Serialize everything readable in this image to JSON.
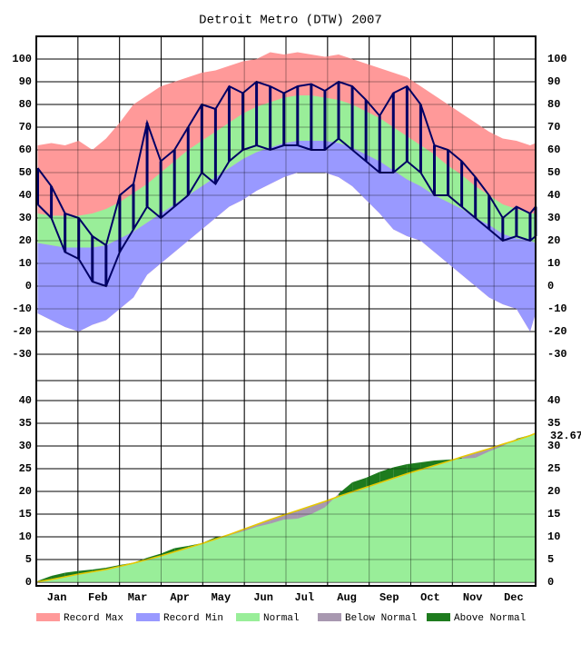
{
  "chart_data": [
    {
      "type": "band",
      "title": "Detroit Metro (DTW) 2007",
      "x": [
        1,
        11,
        21,
        31,
        41,
        51,
        61,
        71,
        81,
        91,
        101,
        111,
        121,
        131,
        141,
        151,
        161,
        171,
        181,
        191,
        201,
        211,
        221,
        231,
        241,
        251,
        261,
        271,
        281,
        291,
        301,
        311,
        321,
        331,
        341,
        351,
        361,
        365
      ],
      "xlim": [
        0,
        365
      ],
      "xticks": [
        {
          "value": 15,
          "label": "Jan"
        },
        {
          "value": 45,
          "label": "Feb"
        },
        {
          "value": 74,
          "label": "Mar"
        },
        {
          "value": 105,
          "label": "Apr"
        },
        {
          "value": 135,
          "label": "May"
        },
        {
          "value": 166,
          "label": "Jun"
        },
        {
          "value": 196,
          "label": "Jul"
        },
        {
          "value": 227,
          "label": "Aug"
        },
        {
          "value": 258,
          "label": "Sep"
        },
        {
          "value": 288,
          "label": "Oct"
        },
        {
          "value": 319,
          "label": "Nov"
        },
        {
          "value": 349,
          "label": "Dec"
        }
      ],
      "ylim": [
        -40,
        110
      ],
      "yticks": [
        -30,
        -20,
        -10,
        0,
        10,
        20,
        30,
        40,
        50,
        60,
        70,
        80,
        90,
        100
      ],
      "grid": true,
      "series": [
        {
          "name": "Record Max",
          "color": "#ff9999",
          "values": [
            62,
            63,
            62,
            64,
            60,
            65,
            72,
            80,
            84,
            88,
            90,
            92,
            94,
            95,
            97,
            99,
            100,
            103,
            102,
            103,
            102,
            101,
            102,
            100,
            98,
            96,
            94,
            92,
            88,
            84,
            80,
            76,
            72,
            68,
            65,
            64,
            62,
            63
          ]
        },
        {
          "name": "Record Min",
          "color": "#9999ff",
          "values": [
            -12,
            -15,
            -18,
            -20,
            -17,
            -15,
            -10,
            -5,
            5,
            10,
            15,
            20,
            25,
            30,
            35,
            38,
            42,
            45,
            48,
            50,
            50,
            50,
            48,
            44,
            38,
            32,
            25,
            22,
            20,
            15,
            10,
            5,
            0,
            -5,
            -8,
            -10,
            -20,
            -12
          ]
        },
        {
          "name": "Normal",
          "color": "#99ee99",
          "values": [
            32,
            31,
            31,
            31,
            32,
            34,
            37,
            41,
            45,
            50,
            55,
            60,
            64,
            68,
            72,
            76,
            79,
            81,
            83,
            84,
            84,
            83,
            82,
            80,
            77,
            74,
            70,
            66,
            62,
            58,
            53,
            49,
            44,
            40,
            36,
            34,
            32,
            32
          ],
          "low": [
            19,
            18,
            17,
            17,
            17,
            18,
            21,
            24,
            28,
            32,
            36,
            40,
            44,
            48,
            52,
            56,
            59,
            61,
            63,
            64,
            64,
            64,
            63,
            61,
            58,
            55,
            51,
            47,
            44,
            40,
            37,
            34,
            30,
            27,
            23,
            21,
            20,
            19
          ]
        }
      ],
      "observed": {
        "color": "#000066",
        "high": [
          52,
          44,
          32,
          30,
          22,
          18,
          40,
          45,
          72,
          55,
          60,
          70,
          80,
          78,
          88,
          85,
          90,
          88,
          85,
          88,
          89,
          86,
          90,
          88,
          82,
          75,
          85,
          88,
          80,
          62,
          60,
          55,
          48,
          40,
          30,
          35,
          32,
          35
        ],
        "low": [
          36,
          30,
          15,
          12,
          2,
          0,
          15,
          25,
          35,
          30,
          35,
          40,
          50,
          45,
          55,
          60,
          62,
          60,
          62,
          62,
          60,
          60,
          65,
          60,
          55,
          50,
          50,
          55,
          50,
          40,
          40,
          35,
          30,
          25,
          20,
          22,
          20,
          22
        ]
      }
    },
    {
      "type": "cumulative",
      "ylim": [
        0,
        40
      ],
      "yticks": [
        0,
        5,
        10,
        15,
        20,
        25,
        30,
        35,
        40
      ],
      "grid": true,
      "normal": [
        0.1,
        0.6,
        1.2,
        1.8,
        2.3,
        2.8,
        3.5,
        4.2,
        5.0,
        5.8,
        6.7,
        7.6,
        8.5,
        9.5,
        10.5,
        11.6,
        12.7,
        13.8,
        14.8,
        15.8,
        16.8,
        17.8,
        18.9,
        19.9,
        20.9,
        21.9,
        22.9,
        23.9,
        24.8,
        25.7,
        26.6,
        27.6,
        28.5,
        29.4,
        30.4,
        31.3,
        32.3,
        32.8
      ],
      "normal_color": "#99ee99",
      "normal_line_color": "#e6c800",
      "actual": [
        0.3,
        1.4,
        2.1,
        2.5,
        2.8,
        3.2,
        3.8,
        4.3,
        5.4,
        6.3,
        7.5,
        8.0,
        8.6,
        9.9,
        10.3,
        11.2,
        12.2,
        12.9,
        13.8,
        14.0,
        15.0,
        16.5,
        19.5,
        22.0,
        23.0,
        24.3,
        25.3,
        26.0,
        26.4,
        26.8,
        27.0,
        27.2,
        27.4,
        28.8,
        30.0,
        31.6,
        32.4,
        32.67
      ],
      "below": {
        "name": "Below Normal",
        "color": "#a898b0"
      },
      "above": {
        "name": "Above Normal",
        "color": "#1e7b1e"
      }
    }
  ]
}
